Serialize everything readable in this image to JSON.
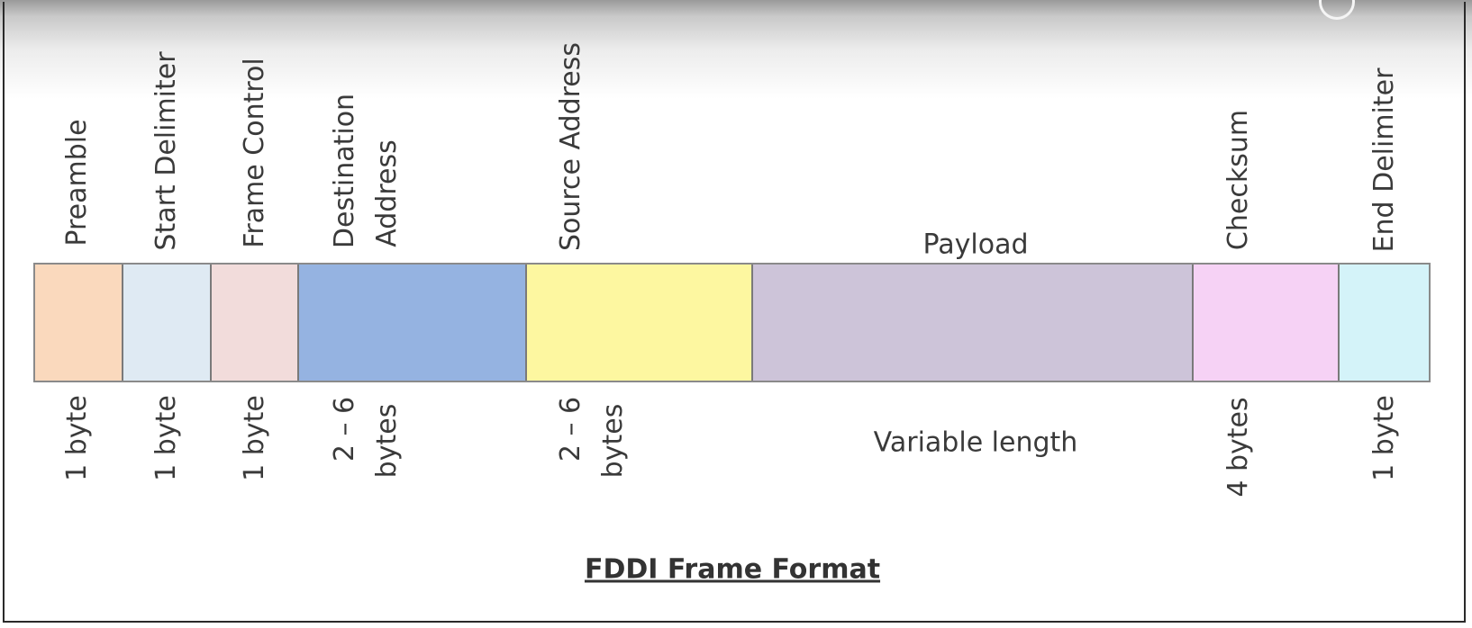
{
  "diagram": {
    "caption": "FDDI Frame Format",
    "fields": [
      {
        "id": "preamble",
        "name_lines": [
          "Preamble"
        ],
        "size_lines": [
          "1 byte"
        ],
        "color": "#fad9bd"
      },
      {
        "id": "start-delimiter",
        "name_lines": [
          "Start Delimiter"
        ],
        "size_lines": [
          "1 byte"
        ],
        "color": "#dfeaf3"
      },
      {
        "id": "frame-control",
        "name_lines": [
          "Frame Control"
        ],
        "size_lines": [
          "1 byte"
        ],
        "color": "#f2dcdb"
      },
      {
        "id": "destination-address",
        "name_lines": [
          "Destination",
          "Address"
        ],
        "size_lines": [
          "2 – 6",
          "bytes"
        ],
        "color": "#95b3e1"
      },
      {
        "id": "source-address",
        "name_lines": [
          "Source Address"
        ],
        "size_lines": [
          "2 – 6",
          "bytes"
        ],
        "color": "#fdf7a0"
      },
      {
        "id": "payload",
        "name_lines": [
          "Payload"
        ],
        "size_lines": [
          "Variable length"
        ],
        "color": "#cdc4d9"
      },
      {
        "id": "checksum",
        "name_lines": [
          "Checksum"
        ],
        "size_lines": [
          "4 bytes"
        ],
        "color": "#f6d2f5"
      },
      {
        "id": "end-delimiter",
        "name_lines": [
          "End Delimiter"
        ],
        "size_lines": [
          "1 byte"
        ],
        "color": "#d4f3f9"
      }
    ]
  }
}
